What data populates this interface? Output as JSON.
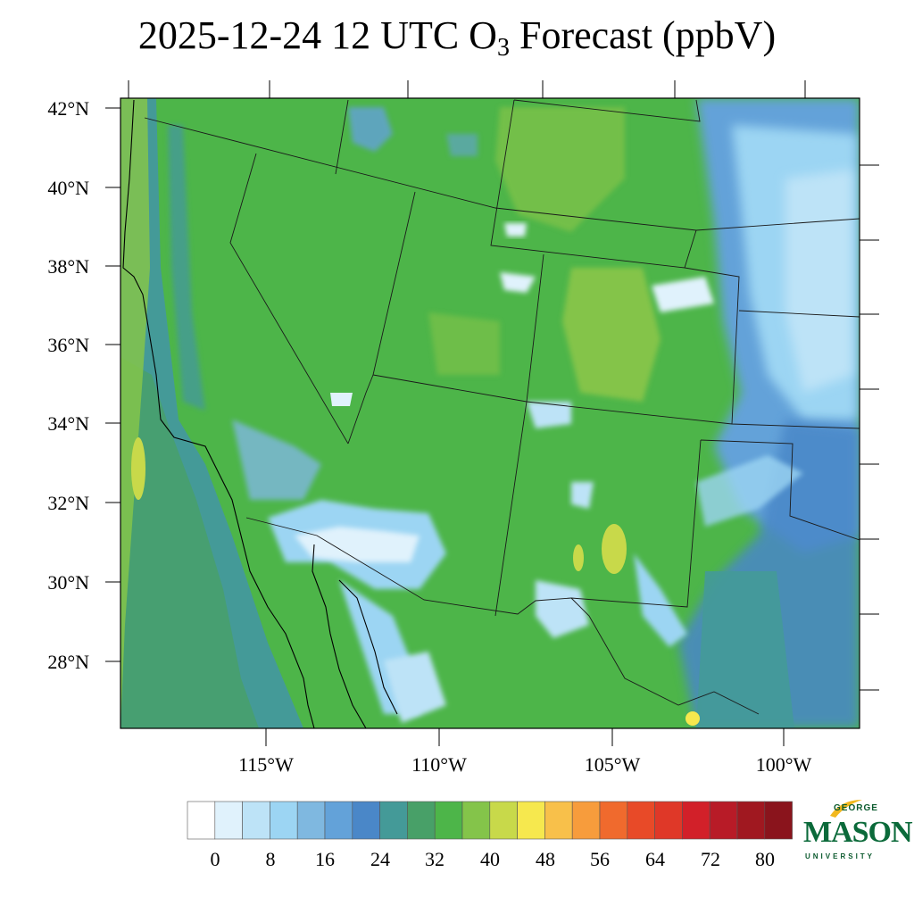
{
  "title": {
    "prefix": "2025-12-24 12 UTC O",
    "subscript": "3",
    "suffix": " Forecast (ppbV)"
  },
  "lat_labels": [
    "42°N",
    "40°N",
    "38°N",
    "36°N",
    "34°N",
    "32°N",
    "30°N",
    "28°N"
  ],
  "lon_labels": [
    "115°W",
    "110°W",
    "105°W",
    "100°W"
  ],
  "colorbar": {
    "tick_labels": [
      "0",
      "8",
      "16",
      "24",
      "32",
      "40",
      "48",
      "56",
      "64",
      "72",
      "80"
    ],
    "colors": [
      "#ffffff",
      "#e0f2fc",
      "#bde3f7",
      "#9cd5f3",
      "#7fb8e0",
      "#63a2d9",
      "#4a87c8",
      "#449a98",
      "#48a068",
      "#4db549",
      "#84c44a",
      "#c8d94a",
      "#f6e84e",
      "#f8c04a",
      "#f79c3c",
      "#f06a2d",
      "#e84a28",
      "#df3828",
      "#d22029",
      "#b81b27",
      "#a01820",
      "#8a141c"
    ]
  },
  "logo": {
    "line1": "GEORGE",
    "line2": "MASON",
    "line3": "UNIVERSITY"
  },
  "colors": {
    "dominant_field": "#4db549",
    "low_field": "#9cd5f3",
    "high_field": "#84c44a"
  }
}
